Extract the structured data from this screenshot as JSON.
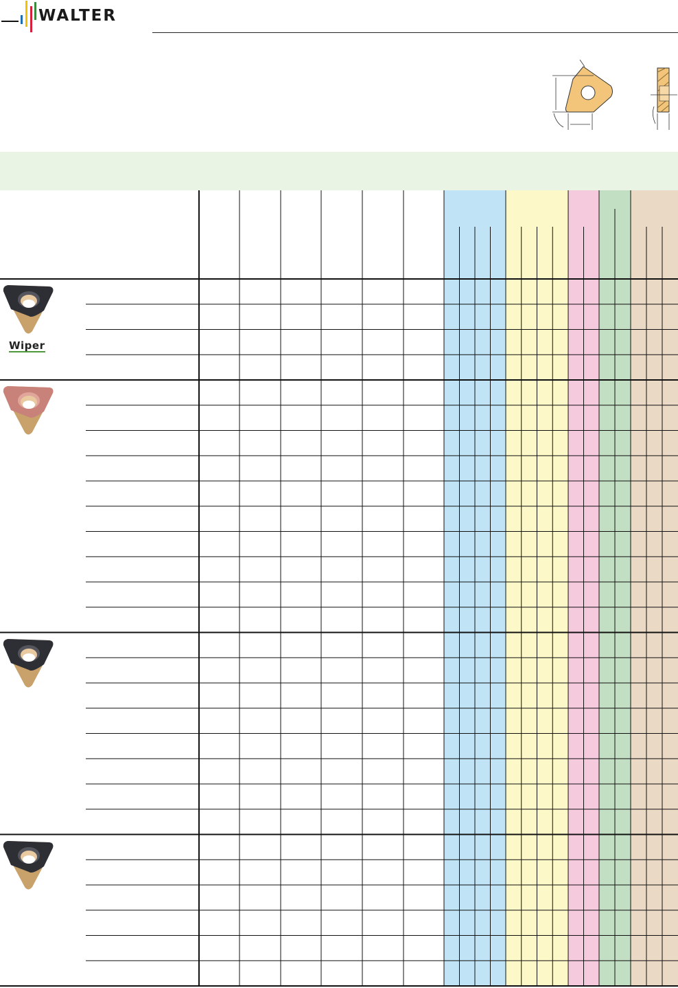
{
  "header": {
    "logo_text": "WALTER",
    "logo_bar_colors": [
      "#1f6db5",
      "#f2c200",
      "#d4203a",
      "#3c8a3c"
    ]
  },
  "band_color": "#eaf4e4",
  "material_groups": [
    {
      "color": "#c0e4f5",
      "subcolumns": 4
    },
    {
      "color": "#fdf8c8",
      "subcolumns": 4
    },
    {
      "color": "#f6cadd",
      "subcolumns": 2
    },
    {
      "color": "#c2dec3",
      "subcolumns": 2
    },
    {
      "color": "#ead9c4",
      "subcolumns": 3
    }
  ],
  "insert_groups": [
    {
      "rows": 4,
      "badge": "Wiper",
      "insert_color": "dark"
    },
    {
      "rows": 10,
      "badge": null,
      "insert_color": "copper"
    },
    {
      "rows": 8,
      "badge": null,
      "insert_color": "dark"
    },
    {
      "rows": 6,
      "badge": null,
      "insert_color": "dark"
    }
  ],
  "insert_badge_color": "#4a9a3a"
}
